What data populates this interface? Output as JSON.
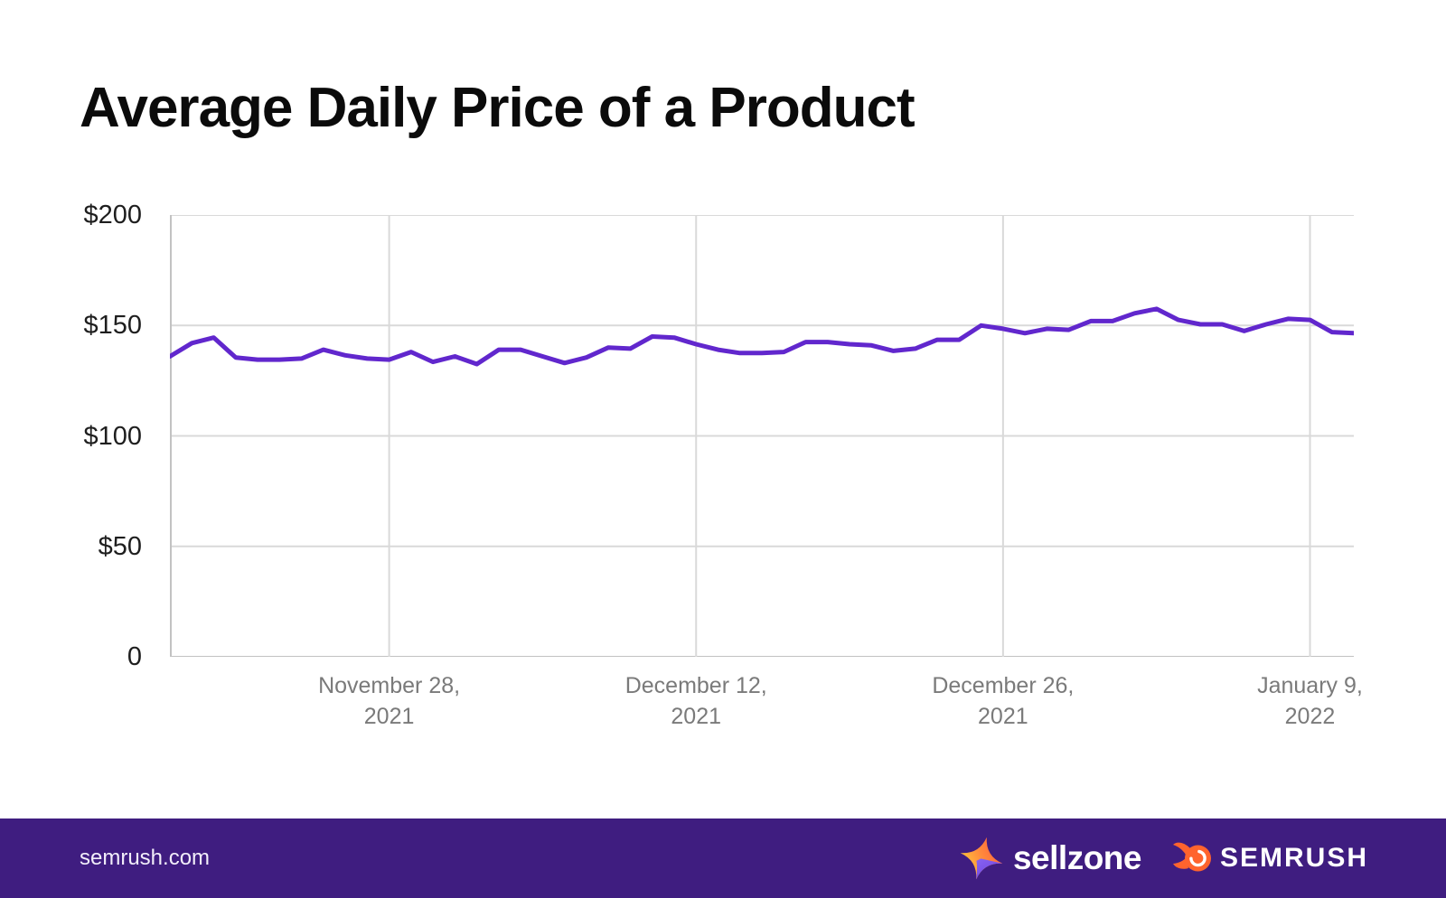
{
  "title": "Average Daily Price of a Product",
  "chart_data": {
    "type": "line",
    "title": "Average Daily Price of a Product",
    "x_unit": "day-index",
    "x": [
      0,
      1,
      2,
      3,
      4,
      5,
      6,
      7,
      8,
      9,
      10,
      11,
      12,
      13,
      14,
      15,
      16,
      17,
      18,
      19,
      20,
      21,
      22,
      23,
      24,
      25,
      26,
      27,
      28,
      29,
      30,
      31,
      32,
      33,
      34,
      35,
      36,
      37,
      38,
      39,
      40,
      41,
      42,
      43,
      44,
      45,
      46,
      47,
      48,
      49,
      50,
      51,
      52,
      53,
      54
    ],
    "values": [
      136,
      142,
      144.5,
      135.5,
      134.5,
      134.5,
      135,
      139,
      136.5,
      135,
      134.5,
      138,
      133.5,
      136,
      132.5,
      139,
      139,
      136,
      133,
      135.5,
      140,
      139.5,
      145,
      144.5,
      141.5,
      139,
      137.5,
      137.5,
      138,
      142.5,
      142.5,
      141.5,
      141,
      138.5,
      139.5,
      143.5,
      143.5,
      150,
      148.5,
      146.5,
      148.5,
      148,
      152,
      152,
      155.5,
      157.5,
      152.5,
      150.5,
      150.5,
      147.5,
      150.5,
      153,
      152.5,
      147,
      146.5
    ],
    "x_ticks": [
      {
        "position": 10,
        "lines": [
          "November 28,",
          "2021"
        ]
      },
      {
        "position": 24,
        "lines": [
          "December 12,",
          "2021"
        ]
      },
      {
        "position": 38,
        "lines": [
          "December 26,",
          "2021"
        ]
      },
      {
        "position": 52,
        "lines": [
          "January 9,",
          "2022"
        ]
      }
    ],
    "y_ticks": [
      {
        "label": "$200",
        "value": 200
      },
      {
        "label": "$150",
        "value": 150
      },
      {
        "label": "$100",
        "value": 100
      },
      {
        "label": "$50",
        "value": 50
      },
      {
        "label": "0",
        "value": 0
      }
    ],
    "ylim": [
      0,
      200
    ],
    "grid": true,
    "legend": false,
    "line_color": "#6127cd",
    "gridline_color": "#d9d9d9",
    "axis_line_color": "#c2c2c2"
  },
  "footer": {
    "website": "semrush.com",
    "sellzone_label": "sellzone",
    "semrush_label": "SEMRUSH",
    "background_color": "#3f1d80",
    "semrush_orange": "#ff642d",
    "sellzone_star_colors": [
      "#ffd43b",
      "#ff8a3c",
      "#ff5a3c",
      "#7a52e8"
    ]
  }
}
